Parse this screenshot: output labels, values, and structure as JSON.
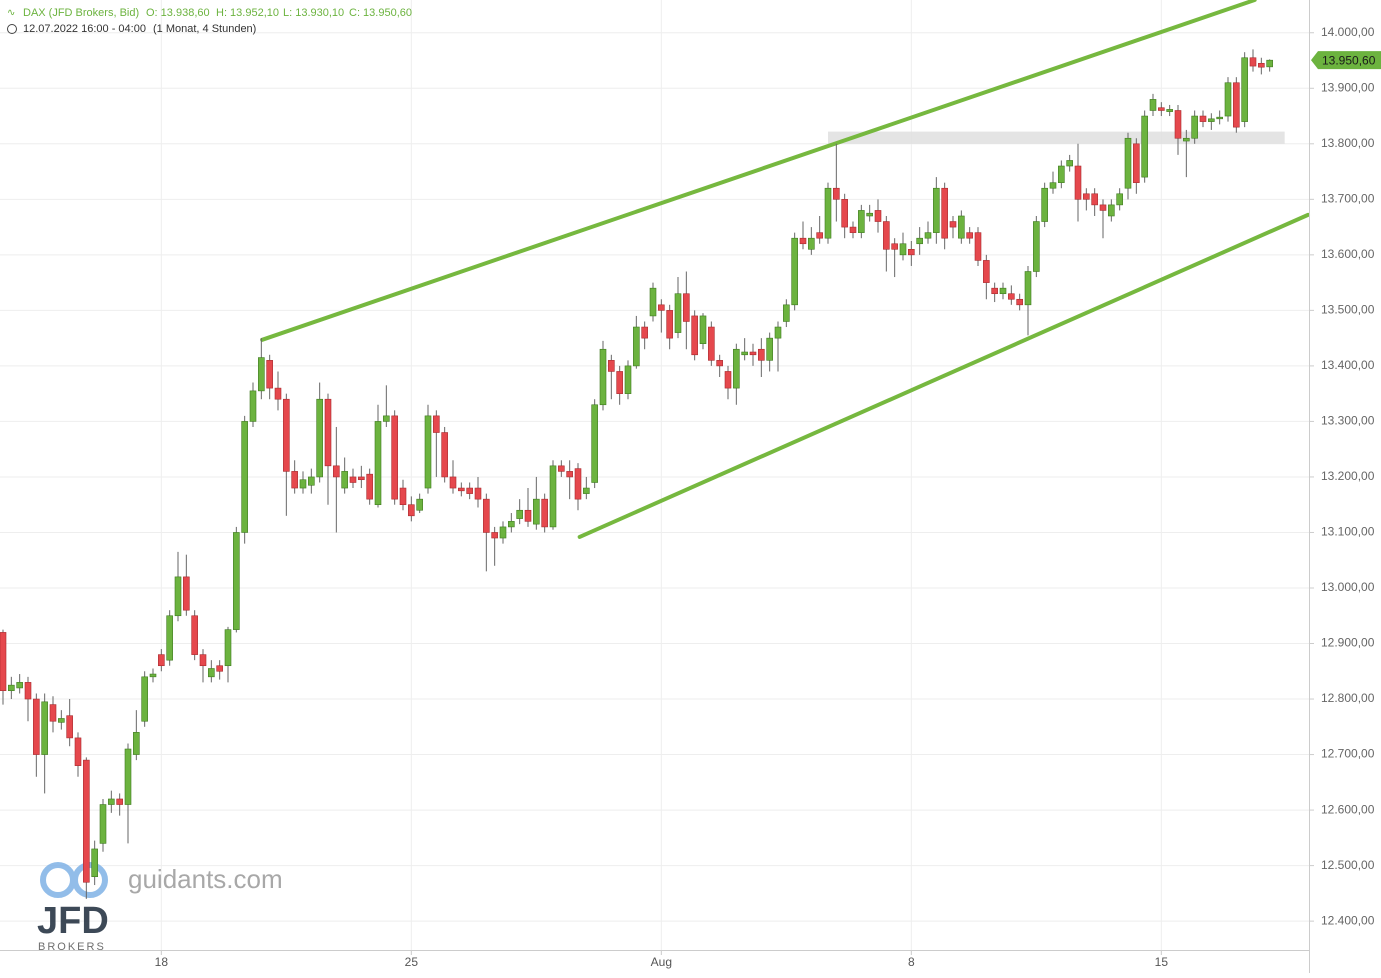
{
  "header": {
    "instrument": "DAX (JFD Brokers, Bid)",
    "open": "O: 13.938,60",
    "high": "H: 13.952,10",
    "low": "L: 13.930,10",
    "close": "C: 13.950,60",
    "time": "12.07.2022 16:00 - 04:00",
    "period": "(1 Monat, 4 Stunden)"
  },
  "watermark": {
    "site": "guidants.com",
    "brand": "JFD",
    "sub": "BROKERS"
  },
  "chart_data": {
    "type": "candlestick",
    "categories": [
      null,
      null,
      null,
      null,
      null,
      null,
      null,
      null,
      null,
      null,
      null,
      null,
      null,
      null,
      null,
      null,
      null,
      null,
      null,
      "18",
      null,
      null,
      null,
      null,
      null,
      null,
      null,
      null,
      null,
      null,
      null,
      null,
      null,
      null,
      null,
      null,
      null,
      null,
      null,
      null,
      null,
      null,
      null,
      null,
      null,
      null,
      null,
      null,
      null,
      "25",
      null,
      null,
      null,
      null,
      null,
      null,
      null,
      null,
      null,
      null,
      null,
      null,
      null,
      null,
      null,
      null,
      null,
      null,
      null,
      null,
      null,
      null,
      null,
      null,
      null,
      null,
      null,
      null,
      null,
      "Aug",
      null,
      null,
      null,
      null,
      null,
      null,
      null,
      null,
      null,
      null,
      null,
      null,
      null,
      null,
      null,
      null,
      null,
      null,
      null,
      null,
      null,
      null,
      null,
      null,
      null,
      null,
      null,
      null,
      null,
      "8",
      null,
      null,
      null,
      null,
      null,
      null,
      null,
      null,
      null,
      null,
      null,
      null,
      null,
      null,
      null,
      null,
      null,
      null,
      null,
      null,
      null,
      null,
      null,
      null,
      null,
      null,
      null,
      null,
      null,
      "15",
      null,
      null,
      null,
      null,
      null,
      null,
      null,
      null,
      null,
      null,
      null,
      null,
      null
    ],
    "open": [
      12920,
      12815,
      12820,
      12830,
      12800,
      12700,
      12790,
      12758,
      12770,
      12730,
      12690,
      12480,
      12540,
      12610,
      12620,
      12610,
      12700,
      12760,
      12840,
      12880,
      12870,
      12950,
      13020,
      12950,
      12880,
      12840,
      12860,
      12860,
      12925,
      13100,
      13300,
      13355,
      13410,
      13360,
      13340,
      13210,
      13180,
      13185,
      13200,
      13340,
      13220,
      13180,
      13200,
      13200,
      13205,
      13150,
      13300,
      13310,
      13180,
      13150,
      13140,
      13180,
      13310,
      13280,
      13200,
      13180,
      13180,
      13180,
      13160,
      13100,
      13090,
      13110,
      13125,
      13140,
      13115,
      13160,
      13110,
      13220,
      13210,
      13215,
      13170,
      13190,
      13330,
      13410,
      13390,
      13350,
      13400,
      13470,
      13490,
      13510,
      13500,
      13460,
      13530,
      13490,
      13440,
      13470,
      13410,
      13390,
      13360,
      13420,
      13425,
      13430,
      13410,
      13450,
      13480,
      13510,
      13630,
      13610,
      13640,
      13630,
      13720,
      13700,
      13650,
      13640,
      13670,
      13680,
      13660,
      13620,
      13600,
      13610,
      13620,
      13630,
      13640,
      13720,
      13660,
      13630,
      13640,
      13640,
      13590,
      13540,
      13530,
      13530,
      13520,
      13510,
      13570,
      13660,
      13720,
      13730,
      13760,
      13760,
      13710,
      13710,
      13690,
      13670,
      13690,
      13720,
      13800,
      13740,
      13860,
      13865,
      13858,
      13860,
      13805,
      13810,
      13850,
      13840,
      13845,
      13850,
      13910,
      13840,
      13955,
      13945,
      13938.6
    ],
    "high": [
      12925,
      12840,
      12845,
      12840,
      12810,
      12810,
      12805,
      12780,
      12800,
      12740,
      12695,
      12545,
      12620,
      12635,
      12630,
      12720,
      12780,
      12850,
      12855,
      12890,
      12960,
      13065,
      13060,
      12960,
      12890,
      12870,
      12870,
      12930,
      13110,
      13310,
      13370,
      13450,
      13420,
      13390,
      13350,
      13230,
      13210,
      13215,
      13370,
      13350,
      13290,
      13235,
      13215,
      13220,
      13215,
      13330,
      13365,
      13320,
      13195,
      13165,
      13170,
      13330,
      13320,
      13290,
      13230,
      13190,
      13190,
      13200,
      13170,
      13110,
      13120,
      13135,
      13160,
      13180,
      13200,
      13170,
      13230,
      13230,
      13230,
      13225,
      13200,
      13340,
      13445,
      13420,
      13400,
      13410,
      13490,
      13480,
      13550,
      13520,
      13510,
      13560,
      13570,
      13500,
      13495,
      13480,
      13420,
      13400,
      13440,
      13450,
      13440,
      13450,
      13460,
      13480,
      13520,
      13640,
      13660,
      13650,
      13670,
      13730,
      13800,
      13710,
      13660,
      13690,
      13690,
      13700,
      13670,
      13630,
      13640,
      13625,
      13650,
      13660,
      13740,
      13730,
      13670,
      13680,
      13650,
      13650,
      13600,
      13550,
      13550,
      13545,
      13530,
      13580,
      13670,
      13730,
      13750,
      13770,
      13780,
      13800,
      13720,
      13720,
      13700,
      13700,
      13720,
      13820,
      13810,
      13860,
      13890,
      13875,
      13870,
      13870,
      13825,
      13860,
      13860,
      13855,
      13860,
      13920,
      13920,
      13965,
      13970,
      13955,
      13952.1
    ],
    "low": [
      12790,
      12800,
      12810,
      12760,
      12660,
      12630,
      12740,
      12745,
      12715,
      12660,
      12440,
      12465,
      12525,
      12595,
      12590,
      12540,
      12690,
      12750,
      12830,
      12850,
      12860,
      12940,
      12950,
      12870,
      12830,
      12830,
      12835,
      12830,
      12920,
      13080,
      13290,
      13340,
      13340,
      13320,
      13130,
      13170,
      13170,
      13170,
      13190,
      13150,
      13100,
      13170,
      13180,
      13180,
      13150,
      13145,
      13290,
      13150,
      13140,
      13120,
      13135,
      13170,
      13200,
      13190,
      13170,
      13165,
      13160,
      13145,
      13030,
      13040,
      13080,
      13100,
      13115,
      13110,
      13105,
      13100,
      13105,
      13200,
      13160,
      13140,
      13160,
      13180,
      13320,
      13340,
      13330,
      13340,
      13395,
      13430,
      13480,
      13460,
      13430,
      13450,
      13430,
      13410,
      13430,
      13400,
      13380,
      13340,
      13330,
      13410,
      13400,
      13380,
      13390,
      13390,
      13470,
      13500,
      13610,
      13600,
      13620,
      13620,
      13660,
      13630,
      13630,
      13630,
      13660,
      13640,
      13570,
      13560,
      13590,
      13580,
      13600,
      13620,
      13620,
      13610,
      13630,
      13620,
      13620,
      13580,
      13520,
      13515,
      13520,
      13510,
      13500,
      13455,
      13560,
      13650,
      13710,
      13720,
      13750,
      13660,
      13680,
      13670,
      13630,
      13660,
      13680,
      13700,
      13710,
      13730,
      13850,
      13850,
      13850,
      13780,
      13740,
      13800,
      13830,
      13825,
      13835,
      13840,
      13820,
      13830,
      13930,
      13925,
      13930.1
    ],
    "close": [
      12815,
      12825,
      12830,
      12800,
      12700,
      12795,
      12760,
      12765,
      12730,
      12680,
      12470,
      12530,
      12610,
      12620,
      12610,
      12710,
      12740,
      12840,
      12845,
      12860,
      12950,
      13020,
      12960,
      12880,
      12860,
      12855,
      12850,
      12925,
      13100,
      13300,
      13355,
      13415,
      13360,
      13340,
      13210,
      13180,
      13195,
      13200,
      13340,
      13220,
      13200,
      13210,
      13190,
      13195,
      13160,
      13300,
      13310,
      13160,
      13150,
      13130,
      13160,
      13310,
      13280,
      13200,
      13180,
      13175,
      13170,
      13160,
      13100,
      13090,
      13110,
      13120,
      13140,
      13120,
      13160,
      13110,
      13220,
      13210,
      13200,
      13160,
      13180,
      13330,
      13430,
      13390,
      13350,
      13400,
      13470,
      13450,
      13540,
      13500,
      13450,
      13530,
      13480,
      13420,
      13490,
      13410,
      13400,
      13360,
      13430,
      13425,
      13420,
      13410,
      13450,
      13470,
      13510,
      13630,
      13620,
      13630,
      13630,
      13720,
      13700,
      13650,
      13640,
      13680,
      13675,
      13660,
      13610,
      13610,
      13620,
      13600,
      13630,
      13640,
      13720,
      13630,
      13650,
      13670,
      13630,
      13590,
      13550,
      13530,
      13540,
      13520,
      13510,
      13570,
      13660,
      13720,
      13730,
      13760,
      13770,
      13700,
      13700,
      13690,
      13680,
      13690,
      13710,
      13810,
      13730,
      13850,
      13880,
      13860,
      13862,
      13810,
      13810,
      13850,
      13840,
      13845,
      13848,
      13910,
      13830,
      13955,
      13940,
      13938,
      13950.6
    ],
    "up_color": "#6cb33f",
    "down_color": "#e5484d",
    "ylim": [
      12348,
      14059
    ],
    "yticks": [
      {
        "value": 12400,
        "label": "12.400,00"
      },
      {
        "value": 12500,
        "label": "12.500,00"
      },
      {
        "value": 12600,
        "label": "12.600,00"
      },
      {
        "value": 12700,
        "label": "12.700,00"
      },
      {
        "value": 12800,
        "label": "12.800,00"
      },
      {
        "value": 12900,
        "label": "12.900,00"
      },
      {
        "value": 13000,
        "label": "13.000,00"
      },
      {
        "value": 13100,
        "label": "13.100,00"
      },
      {
        "value": 13200,
        "label": "13.200,00"
      },
      {
        "value": 13300,
        "label": "13.300,00"
      },
      {
        "value": 13400,
        "label": "13.400,00"
      },
      {
        "value": 13500,
        "label": "13.500,00"
      },
      {
        "value": 13600,
        "label": "13.600,00"
      },
      {
        "value": 13700,
        "label": "13.700,00"
      },
      {
        "value": 13800,
        "label": "13.800,00"
      },
      {
        "value": 13900,
        "label": "13.900,00"
      },
      {
        "value": 14000,
        "label": "14.000,00"
      }
    ],
    "grid": true,
    "last_price": {
      "value": 13950.6,
      "label": "13.950,60"
    },
    "trend_lines": [
      {
        "x": [
          31.1,
          150.2
        ],
        "y": [
          13447,
          14059
        ],
        "color": "#76b83f"
      },
      {
        "x": [
          69.2,
          156.6
        ],
        "y": [
          13092,
          13672
        ],
        "color": "#76b83f"
      }
    ],
    "zone": {
      "x": [
        99,
        153.8
      ],
      "y": [
        13800,
        13822
      ],
      "color": "#dddddd"
    }
  }
}
